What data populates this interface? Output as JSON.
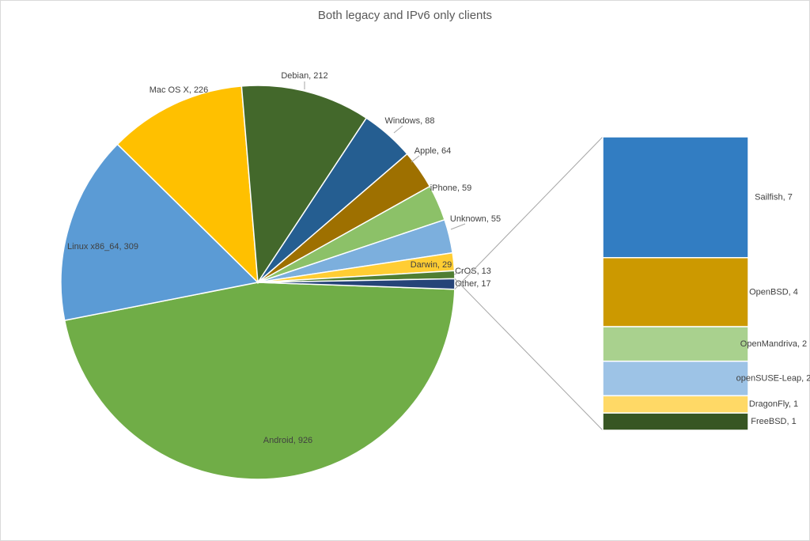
{
  "chart_data": {
    "type": "pie",
    "title": "Both legacy and IPv6 only clients",
    "values": [
      926,
      309,
      226,
      212,
      88,
      64,
      59,
      55,
      29,
      13,
      17
    ],
    "value_labels": [
      "Android, 926",
      "Linux x86_64, 309",
      "Mac OS X, 226",
      "Debian, 212",
      "Windows, 88",
      "Apple, 64",
      "iPhone, 59",
      "Unknown, 55",
      "Darwin, 29",
      "CrOS, 13",
      "Other, 17"
    ],
    "colors": [
      "#70ad47",
      "#5b9bd5",
      "#ffc000",
      "#43682b",
      "#255e91",
      "#9e7000",
      "#8cc168",
      "#7cafdd",
      "#ffcd33",
      "#507e32",
      "#264478"
    ],
    "breakdown": {
      "type": "bar",
      "values": [
        7,
        4,
        2,
        2,
        1,
        1
      ],
      "value_labels": [
        "Sailfish, 7",
        "OpenBSD, 4",
        "OpenMandriva, 2",
        "openSUSE-Leap, 2",
        "DragonFly, 1",
        "FreeBSD, 1"
      ],
      "colors": [
        "#327dc2",
        "#cc9900",
        "#a9d18e",
        "#9dc3e6",
        "#ffd966",
        "#375623"
      ]
    }
  }
}
